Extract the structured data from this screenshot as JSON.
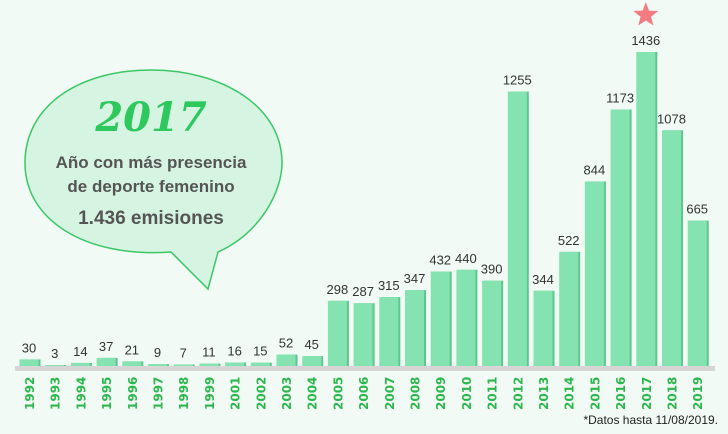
{
  "chart_data": {
    "type": "bar",
    "categories": [
      "1992",
      "1993",
      "1994",
      "1995",
      "1996",
      "1997",
      "1998",
      "1999",
      "2001",
      "2002",
      "2003",
      "2004",
      "2005",
      "2006",
      "2007",
      "2008",
      "2009",
      "2010",
      "2011",
      "2012",
      "2013",
      "2014",
      "2015",
      "2016",
      "2017",
      "2018",
      "2019"
    ],
    "values": [
      30,
      3,
      14,
      37,
      21,
      9,
      7,
      11,
      16,
      15,
      52,
      45,
      298,
      287,
      315,
      347,
      432,
      440,
      390,
      1255,
      344,
      522,
      844,
      1173,
      1436,
      1078,
      665
    ],
    "highlight": "2017",
    "ylim": [
      0,
      1436
    ],
    "grid": false,
    "colors": {
      "bar": "#84e3b0",
      "bar_shadow": "#5cc88e",
      "year_label": "#2db84e",
      "star": "#f47b82",
      "bubble_fill": "#d6f4e2",
      "bubble_stroke": "#3cc766"
    }
  },
  "callout": {
    "year": "2017",
    "line1": "Año con más presencia",
    "line2": "de deporte femenino",
    "line3": "1.436 emisiones"
  },
  "footnote": "*Datos hasta 11/08/2019."
}
